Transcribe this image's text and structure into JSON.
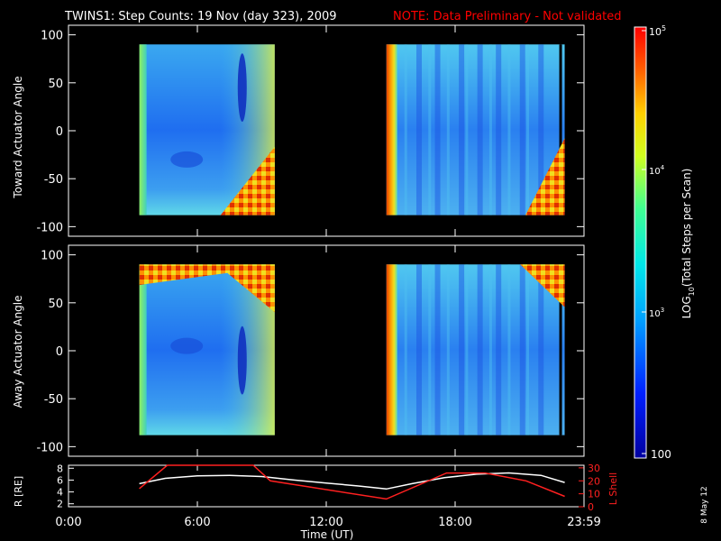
{
  "title": "TWINS1: Step Counts: 19 Nov (day 323), 2009",
  "note": "NOTE: Data Preliminary - Not validated",
  "date_stamp": "8 May 12",
  "colors": {
    "background": "#000000",
    "axes": "#ffffff",
    "note": "#ff0000",
    "r_line": "#ffffff",
    "l_line": "#ff2020"
  },
  "chart_data": [
    {
      "type": "heatmap",
      "ylabel": "Toward Actuator Angle",
      "ylim": [
        -110,
        110
      ],
      "yticks": [
        100,
        50,
        0,
        -50,
        -100
      ],
      "xlim": [
        0,
        24
      ],
      "data_coverage_hours": [
        [
          3.3,
          9.6
        ],
        [
          14.8,
          23.1
        ]
      ],
      "data_angle_range": [
        -88,
        90
      ]
    },
    {
      "type": "heatmap",
      "ylabel": "Away Actuator Angle",
      "ylim": [
        -110,
        110
      ],
      "yticks": [
        100,
        50,
        0,
        -50,
        -100
      ],
      "xlim": [
        0,
        24
      ],
      "data_coverage_hours": [
        [
          3.3,
          9.6
        ],
        [
          14.8,
          23.1
        ]
      ],
      "data_angle_range": [
        -88,
        90
      ]
    },
    {
      "type": "line",
      "xlabel": "Time (UT)",
      "xticks": [
        "0:00",
        "6:00",
        "12:00",
        "18:00",
        "23:59"
      ],
      "ylabel_left": "R [RE]",
      "ylabel_left_sub": "E",
      "ylabel_right": "L Shell",
      "yticks_left": [
        8,
        6,
        4,
        2
      ],
      "yticks_right": [
        30,
        20,
        10,
        0
      ],
      "ylim_left": [
        1.5,
        8.5
      ],
      "ylim_right": [
        0,
        32
      ],
      "series": [
        {
          "axis": "left",
          "x": [
            3.3,
            4.5,
            6.0,
            7.5,
            9.0,
            10.5,
            12.0,
            13.5,
            14.8,
            16.0,
            17.5,
            19.0,
            20.5,
            22.0,
            23.1
          ],
          "y": [
            5.4,
            6.3,
            6.7,
            6.8,
            6.6,
            6.0,
            5.5,
            5.0,
            4.5,
            5.4,
            6.4,
            7.0,
            7.2,
            6.8,
            5.6
          ]
        },
        {
          "axis": "right",
          "x": [
            3.3,
            4.6,
            8.6,
            9.4,
            14.8,
            17.6,
            19.4,
            21.3,
            23.1
          ],
          "y": [
            14,
            32,
            32,
            20,
            6,
            26,
            26,
            20,
            8
          ]
        }
      ]
    }
  ],
  "colorbar": {
    "label_pre": "LOG",
    "label_sub": "10",
    "label_post": "(Total Steps per Scan)",
    "top_label": "10",
    "top_label_sup": "5",
    "mid_label": "10",
    "mid_label_sup": "4",
    "low_label": "10",
    "low_label_sup": "3",
    "bottom_label": "100",
    "range": [
      100,
      100000
    ]
  }
}
